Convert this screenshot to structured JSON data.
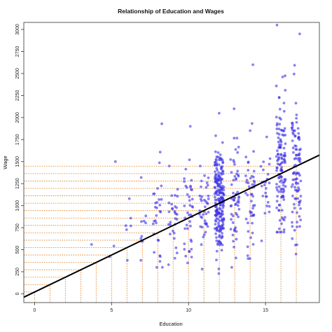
{
  "chart_data": {
    "type": "scatter",
    "title": "Relationship of Education and Wages",
    "xlabel": "Education",
    "ylabel": "Wage",
    "xlim": [
      -0.7,
      18.5
    ],
    "ylim": [
      -100,
      3080
    ],
    "xticks": [
      0,
      5,
      10,
      15
    ],
    "yticks": [
      0,
      250,
      500,
      750,
      1000,
      1250,
      1500,
      1750,
      2000,
      2250,
      2500,
      2750,
      3000
    ],
    "grid": false,
    "colors": {
      "points": "#3b2ee6",
      "fit_line": "#000000",
      "guides": "#e07a1a",
      "axis": "#333333"
    },
    "fit_line": {
      "intercept": 20,
      "slope": 84,
      "x_range": [
        -0.7,
        18.5
      ]
    },
    "guide_lines": {
      "education_levels": [
        0,
        1,
        2,
        3,
        4,
        5,
        6,
        7,
        8,
        9,
        10,
        11,
        12,
        13,
        14,
        15,
        16,
        17
      ],
      "fitted_wages": [
        20,
        104,
        188,
        272,
        356,
        440,
        524,
        608,
        692,
        776,
        860,
        944,
        1028,
        1112,
        1196,
        1280,
        1364,
        1448
      ]
    },
    "point_clusters": [
      {
        "education": 4,
        "count": 1,
        "wage_min": 560,
        "wage_max": 560,
        "wage_center": 560
      },
      {
        "education": 5,
        "count": 3,
        "wage_min": 420,
        "wage_max": 1500,
        "wage_center": 600
      },
      {
        "education": 6,
        "count": 6,
        "wage_min": 380,
        "wage_max": 1080,
        "wage_center": 700
      },
      {
        "education": 7,
        "count": 10,
        "wage_min": 380,
        "wage_max": 1320,
        "wage_center": 750
      },
      {
        "education": 8,
        "count": 30,
        "wage_min": 300,
        "wage_max": 1930,
        "wage_center": 850
      },
      {
        "education": 9,
        "count": 30,
        "wage_min": 330,
        "wage_max": 1450,
        "wage_center": 850
      },
      {
        "education": 10,
        "count": 40,
        "wage_min": 350,
        "wage_max": 1900,
        "wage_center": 920
      },
      {
        "education": 11,
        "count": 40,
        "wage_min": 280,
        "wage_max": 1450,
        "wage_center": 950
      },
      {
        "education": 12,
        "count": 220,
        "wage_min": 230,
        "wage_max": 2050,
        "wage_center": 1050
      },
      {
        "education": 13,
        "count": 60,
        "wage_min": 300,
        "wage_max": 2100,
        "wage_center": 1100
      },
      {
        "education": 14,
        "count": 50,
        "wage_min": 400,
        "wage_max": 2600,
        "wage_center": 1150
      },
      {
        "education": 15,
        "count": 25,
        "wage_min": 600,
        "wage_max": 1780,
        "wage_center": 1200
      },
      {
        "education": 16,
        "count": 130,
        "wage_min": 700,
        "wage_max": 3050,
        "wage_center": 1500
      },
      {
        "education": 17,
        "count": 100,
        "wage_min": 450,
        "wage_max": 2950,
        "wage_center": 1400
      }
    ]
  }
}
